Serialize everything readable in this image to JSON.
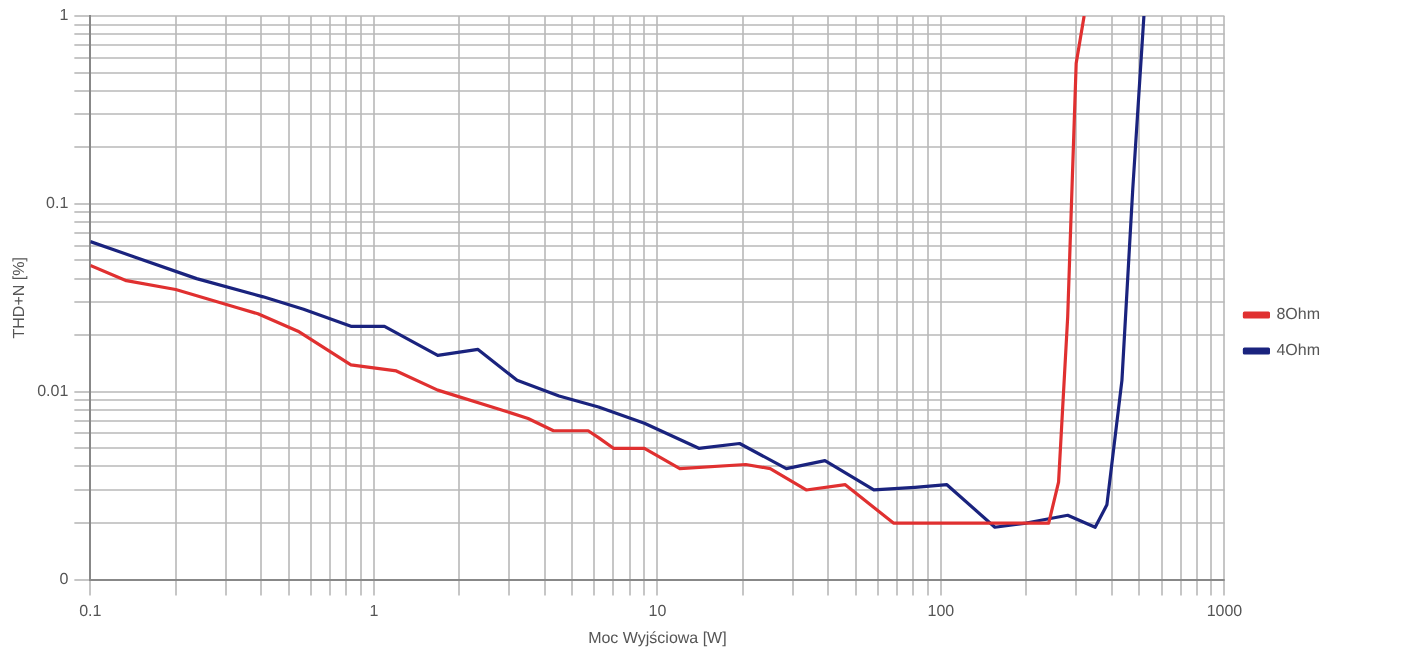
{
  "chart_data": {
    "type": "line",
    "xlabel": "Moc Wyjściowa [W]",
    "ylabel": "THD+N [%]",
    "log": "xy",
    "grid": true,
    "legend": "right",
    "marker": "none",
    "line_style": "solid",
    "xlim": [
      0.1,
      1000
    ],
    "ylim": [
      0.001,
      1
    ],
    "xticks": [
      0.1,
      {
        "value": 0.2,
        "label": null
      },
      {
        "value": 0.3,
        "label": null
      },
      {
        "value": 0.4,
        "label": null
      },
      {
        "value": 0.5,
        "label": null
      },
      {
        "value": 0.6,
        "label": null
      },
      {
        "value": 0.7,
        "label": null
      },
      {
        "value": 0.8,
        "label": null
      },
      {
        "value": 0.9,
        "label": null
      },
      1,
      {
        "value": 2,
        "label": null
      },
      {
        "value": 3,
        "label": null
      },
      {
        "value": 4,
        "label": null
      },
      {
        "value": 5,
        "label": null
      },
      {
        "value": 6,
        "label": null
      },
      {
        "value": 7,
        "label": null
      },
      {
        "value": 8,
        "label": null
      },
      {
        "value": 9,
        "label": null
      },
      10,
      {
        "value": 20,
        "label": null
      },
      {
        "value": 30,
        "label": null
      },
      {
        "value": 40,
        "label": null
      },
      {
        "value": 50,
        "label": null
      },
      {
        "value": 60,
        "label": null
      },
      {
        "value": 70,
        "label": null
      },
      {
        "value": 80,
        "label": null
      },
      {
        "value": 90,
        "label": null
      },
      100,
      {
        "value": 200,
        "label": null
      },
      {
        "value": 300,
        "label": null
      },
      {
        "value": 400,
        "label": null
      },
      {
        "value": 500,
        "label": null
      },
      {
        "value": 600,
        "label": null
      },
      {
        "value": 700,
        "label": null
      },
      {
        "value": 800,
        "label": null
      },
      {
        "value": 900,
        "label": null
      },
      1000
    ],
    "yticks": [
      {
        "value": 0.001,
        "label": "0"
      },
      {
        "value": 0.002,
        "label": null
      },
      {
        "value": 0.003,
        "label": null
      },
      {
        "value": 0.004,
        "label": null
      },
      {
        "value": 0.005,
        "label": null
      },
      {
        "value": 0.006,
        "label": null
      },
      {
        "value": 0.007,
        "label": null
      },
      {
        "value": 0.008,
        "label": null
      },
      {
        "value": 0.009,
        "label": null
      },
      0.01,
      {
        "value": 0.02,
        "label": null
      },
      {
        "value": 0.03,
        "label": null
      },
      {
        "value": 0.04,
        "label": null
      },
      {
        "value": 0.05,
        "label": null
      },
      {
        "value": 0.06,
        "label": null
      },
      {
        "value": 0.07,
        "label": null
      },
      {
        "value": 0.08,
        "label": null
      },
      {
        "value": 0.09,
        "label": null
      },
      0.1,
      {
        "value": 0.2,
        "label": null
      },
      {
        "value": 0.3,
        "label": null
      },
      {
        "value": 0.4,
        "label": null
      },
      {
        "value": 0.5,
        "label": null
      },
      {
        "value": 0.6,
        "label": null
      },
      {
        "value": 0.7,
        "label": null
      },
      {
        "value": 0.8,
        "label": null
      },
      {
        "value": 0.9,
        "label": null
      },
      1
    ],
    "series": [
      {
        "name": "8Ohm",
        "color": "#e03030",
        "x": [
          0.1,
          0.134,
          0.2,
          0.33,
          0.39,
          0.54,
          0.83,
          1.2,
          1.68,
          2.75,
          3.5,
          4.3,
          5.7,
          6.2,
          7,
          9,
          12,
          20.5,
          25,
          33.5,
          46,
          68,
          117,
          240,
          260,
          280,
          300,
          320
        ],
        "values": [
          0.047,
          0.039,
          0.035,
          0.028,
          0.026,
          0.021,
          0.0139,
          0.0129,
          0.0102,
          0.0081,
          0.0072,
          0.0062,
          0.0062,
          0.0057,
          0.005,
          0.005,
          0.0039,
          0.0041,
          0.0039,
          0.003,
          0.0032,
          0.002,
          0.002,
          0.002,
          0.0033,
          0.025,
          0.56,
          1
        ]
      },
      {
        "name": "4Ohm",
        "color": "#1a237e",
        "x": [
          0.1,
          0.139,
          0.237,
          0.407,
          0.565,
          0.83,
          1.09,
          1.68,
          2.33,
          3.2,
          4.5,
          6.2,
          9,
          14,
          19.5,
          28.5,
          39,
          58,
          81,
          105,
          155,
          200,
          280,
          350,
          385,
          435,
          475,
          520
        ],
        "values": [
          0.063,
          0.053,
          0.04,
          0.032,
          0.0275,
          0.0223,
          0.0223,
          0.0156,
          0.0168,
          0.0115,
          0.0095,
          0.0083,
          0.0068,
          0.005,
          0.0053,
          0.0039,
          0.0043,
          0.003,
          0.0031,
          0.0032,
          0.0019,
          0.002,
          0.0022,
          0.0019,
          0.0025,
          0.0115,
          0.12,
          1
        ]
      }
    ]
  }
}
